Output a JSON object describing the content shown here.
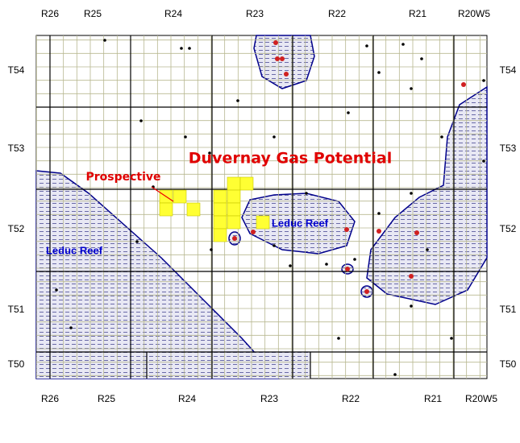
{
  "top_labels": [
    "R26",
    "R25",
    "R24",
    "R23",
    "R22",
    "R21",
    "R20W5"
  ],
  "bottom_labels": [
    "R26",
    "R25",
    "R24",
    "R23",
    "R22",
    "R21",
    "R20W5"
  ],
  "left_labels": [
    "T54",
    "T53",
    "T52",
    "T51",
    "T50"
  ],
  "right_labels": [
    "T54",
    "T53",
    "T52",
    "T51",
    "T50"
  ],
  "title": "Duvernay Gas Potential",
  "callout": "Prospective",
  "reef_labels": [
    "Leduc Reef",
    "Leduc Reef"
  ]
}
